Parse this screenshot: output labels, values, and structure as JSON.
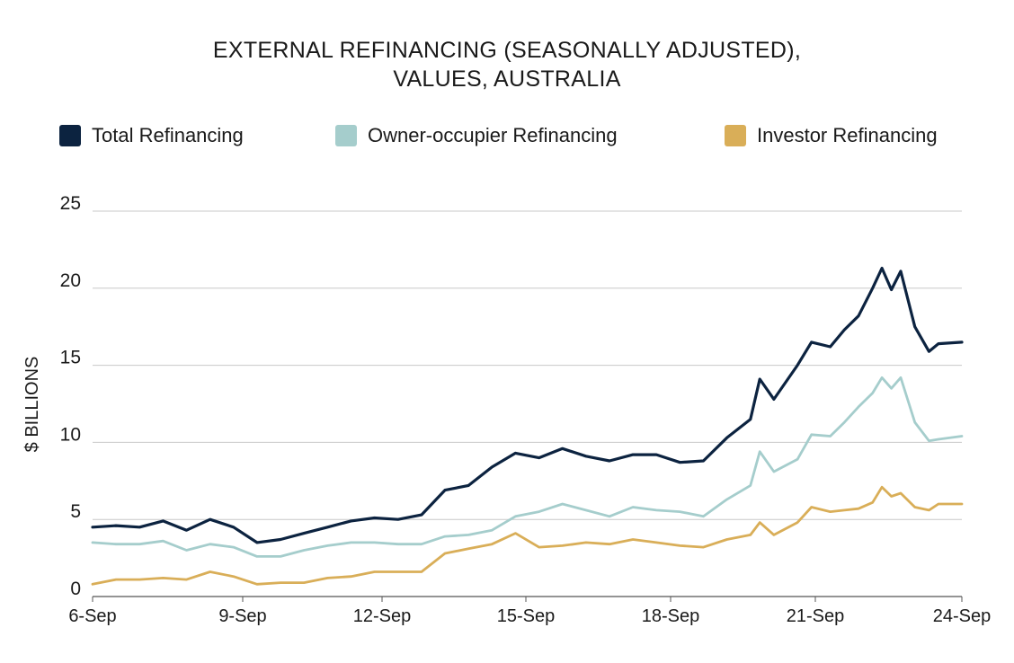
{
  "chart_data": {
    "type": "line",
    "title_line1": "EXTERNAL REFINANCING (SEASONALLY ADJUSTED),",
    "title_line2": "VALUES, AUSTRALIA",
    "ylabel": "$ BILLIONS",
    "xlabel": "",
    "ylim": [
      0,
      25
    ],
    "yticks": [
      "0",
      "5",
      "10",
      "15",
      "20",
      "25"
    ],
    "xticks": [
      "6-Sep",
      "9-Sep",
      "12-Sep",
      "15-Sep",
      "18-Sep",
      "21-Sep",
      "24-Sep"
    ],
    "xlim": [
      2006,
      2024.5
    ],
    "grid": true,
    "legend_position": "top",
    "series": [
      {
        "name": "Total Refinancing",
        "color": "#0c2340",
        "points": [
          [
            2006.0,
            4.5
          ],
          [
            2006.5,
            4.6
          ],
          [
            2007.0,
            4.5
          ],
          [
            2007.5,
            4.9
          ],
          [
            2008.0,
            4.3
          ],
          [
            2008.5,
            5.0
          ],
          [
            2009.0,
            4.5
          ],
          [
            2009.5,
            3.5
          ],
          [
            2010.0,
            3.7
          ],
          [
            2010.5,
            4.1
          ],
          [
            2011.0,
            4.5
          ],
          [
            2011.5,
            4.9
          ],
          [
            2012.0,
            5.1
          ],
          [
            2012.5,
            5.0
          ],
          [
            2013.0,
            5.3
          ],
          [
            2013.5,
            6.9
          ],
          [
            2014.0,
            7.2
          ],
          [
            2014.5,
            8.4
          ],
          [
            2015.0,
            9.3
          ],
          [
            2015.5,
            9.0
          ],
          [
            2016.0,
            9.6
          ],
          [
            2016.5,
            9.1
          ],
          [
            2017.0,
            8.8
          ],
          [
            2017.5,
            9.2
          ],
          [
            2018.0,
            9.2
          ],
          [
            2018.5,
            8.7
          ],
          [
            2019.0,
            8.8
          ],
          [
            2019.5,
            10.3
          ],
          [
            2020.0,
            11.5
          ],
          [
            2020.2,
            14.1
          ],
          [
            2020.5,
            12.8
          ],
          [
            2021.0,
            15.0
          ],
          [
            2021.3,
            16.5
          ],
          [
            2021.7,
            16.2
          ],
          [
            2022.0,
            17.3
          ],
          [
            2022.3,
            18.2
          ],
          [
            2022.6,
            20.0
          ],
          [
            2022.8,
            21.3
          ],
          [
            2023.0,
            19.9
          ],
          [
            2023.2,
            21.1
          ],
          [
            2023.5,
            17.5
          ],
          [
            2023.8,
            15.9
          ],
          [
            2024.0,
            16.4
          ],
          [
            2024.5,
            16.5
          ]
        ]
      },
      {
        "name": "Owner-occupier Refinancing",
        "color": "#a5cdcc",
        "points": [
          [
            2006.0,
            3.5
          ],
          [
            2006.5,
            3.4
          ],
          [
            2007.0,
            3.4
          ],
          [
            2007.5,
            3.6
          ],
          [
            2008.0,
            3.0
          ],
          [
            2008.5,
            3.4
          ],
          [
            2009.0,
            3.2
          ],
          [
            2009.5,
            2.6
          ],
          [
            2010.0,
            2.6
          ],
          [
            2010.5,
            3.0
          ],
          [
            2011.0,
            3.3
          ],
          [
            2011.5,
            3.5
          ],
          [
            2012.0,
            3.5
          ],
          [
            2012.5,
            3.4
          ],
          [
            2013.0,
            3.4
          ],
          [
            2013.5,
            3.9
          ],
          [
            2014.0,
            4.0
          ],
          [
            2014.5,
            4.3
          ],
          [
            2015.0,
            5.2
          ],
          [
            2015.5,
            5.5
          ],
          [
            2016.0,
            6.0
          ],
          [
            2016.5,
            5.6
          ],
          [
            2017.0,
            5.2
          ],
          [
            2017.5,
            5.8
          ],
          [
            2018.0,
            5.6
          ],
          [
            2018.5,
            5.5
          ],
          [
            2019.0,
            5.2
          ],
          [
            2019.5,
            6.3
          ],
          [
            2020.0,
            7.2
          ],
          [
            2020.2,
            9.4
          ],
          [
            2020.5,
            8.1
          ],
          [
            2021.0,
            8.9
          ],
          [
            2021.3,
            10.5
          ],
          [
            2021.7,
            10.4
          ],
          [
            2022.0,
            11.3
          ],
          [
            2022.3,
            12.3
          ],
          [
            2022.6,
            13.2
          ],
          [
            2022.8,
            14.2
          ],
          [
            2023.0,
            13.5
          ],
          [
            2023.2,
            14.2
          ],
          [
            2023.5,
            11.3
          ],
          [
            2023.8,
            10.1
          ],
          [
            2024.0,
            10.2
          ],
          [
            2024.5,
            10.4
          ]
        ]
      },
      {
        "name": "Investor Refinancing",
        "color": "#d9ae58",
        "points": [
          [
            2006.0,
            0.8
          ],
          [
            2006.5,
            1.1
          ],
          [
            2007.0,
            1.1
          ],
          [
            2007.5,
            1.2
          ],
          [
            2008.0,
            1.1
          ],
          [
            2008.5,
            1.6
          ],
          [
            2009.0,
            1.3
          ],
          [
            2009.5,
            0.8
          ],
          [
            2010.0,
            0.9
          ],
          [
            2010.5,
            0.9
          ],
          [
            2011.0,
            1.2
          ],
          [
            2011.5,
            1.3
          ],
          [
            2012.0,
            1.6
          ],
          [
            2012.5,
            1.6
          ],
          [
            2013.0,
            1.6
          ],
          [
            2013.5,
            2.8
          ],
          [
            2014.0,
            3.1
          ],
          [
            2014.5,
            3.4
          ],
          [
            2015.0,
            4.1
          ],
          [
            2015.5,
            3.2
          ],
          [
            2016.0,
            3.3
          ],
          [
            2016.5,
            3.5
          ],
          [
            2017.0,
            3.4
          ],
          [
            2017.5,
            3.7
          ],
          [
            2018.0,
            3.5
          ],
          [
            2018.5,
            3.3
          ],
          [
            2019.0,
            3.2
          ],
          [
            2019.5,
            3.7
          ],
          [
            2020.0,
            4.0
          ],
          [
            2020.2,
            4.8
          ],
          [
            2020.5,
            4.0
          ],
          [
            2021.0,
            4.8
          ],
          [
            2021.3,
            5.8
          ],
          [
            2021.7,
            5.5
          ],
          [
            2022.0,
            5.6
          ],
          [
            2022.3,
            5.7
          ],
          [
            2022.6,
            6.1
          ],
          [
            2022.8,
            7.1
          ],
          [
            2023.0,
            6.5
          ],
          [
            2023.2,
            6.7
          ],
          [
            2023.5,
            5.8
          ],
          [
            2023.8,
            5.6
          ],
          [
            2024.0,
            6.0
          ],
          [
            2024.5,
            6.0
          ]
        ]
      }
    ]
  }
}
